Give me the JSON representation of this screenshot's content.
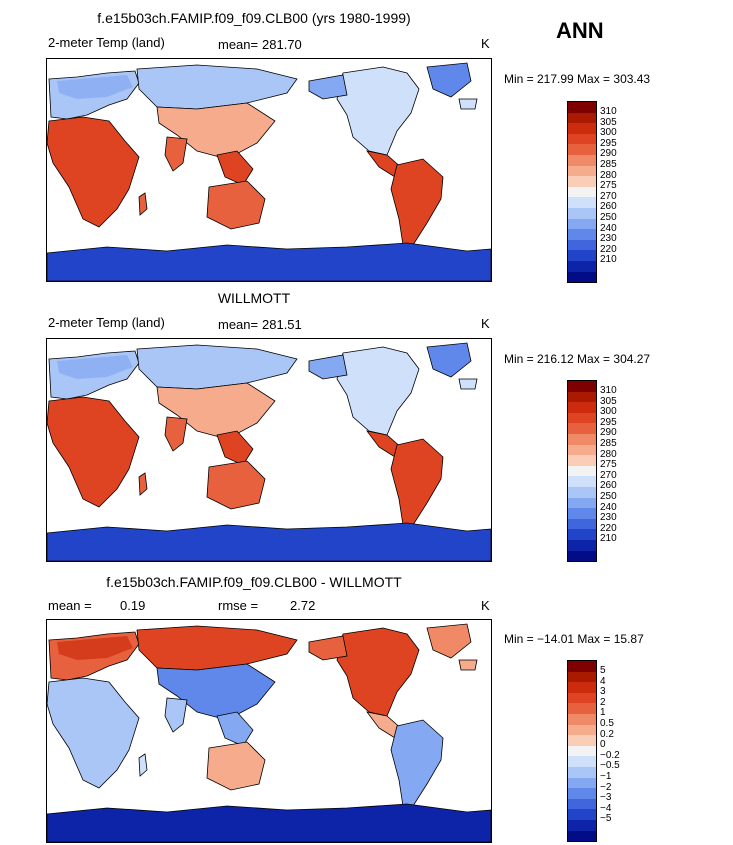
{
  "season": "ANN",
  "palette": {
    "temp": [
      "#7f0000",
      "#aa1a00",
      "#cc2c0d",
      "#de4422",
      "#e8613e",
      "#f08a66",
      "#f5ab8c",
      "#f9cdb6",
      "#f3f3f3",
      "#cfe0fa",
      "#a9c6f7",
      "#84a8f1",
      "#5f88ea",
      "#3f66dd",
      "#2244c8",
      "#0e24a8",
      "#010c86"
    ],
    "diff": [
      "#7f0000",
      "#aa1a00",
      "#cc2c0d",
      "#de4422",
      "#e8613e",
      "#f08a66",
      "#f5ab8c",
      "#f9cdb6",
      "#f3f3f3",
      "#cfe0fa",
      "#a9c6f7",
      "#84a8f1",
      "#5f88ea",
      "#3f66dd",
      "#2244c8",
      "#0e24a8",
      "#010c86"
    ]
  },
  "panels": [
    {
      "title": "f.e15b03ch.FAMIP.f09_f09.CLB00 (yrs 1980-1999)",
      "left_label": "2-meter Temp (land)",
      "stat_label": "mean=",
      "stat_value": "281.70",
      "stat2_label": "",
      "stat2_value": "",
      "units": "K",
      "minmax": "Min = 217.99 Max = 303.43",
      "kind": "temp",
      "ticks": [
        "310",
        "305",
        "300",
        "295",
        "290",
        "285",
        "280",
        "275",
        "270",
        "260",
        "250",
        "240",
        "230",
        "220",
        "210"
      ]
    },
    {
      "title": "WILLMOTT",
      "left_label": "2-meter Temp (land)",
      "stat_label": "mean=",
      "stat_value": "281.51",
      "stat2_label": "",
      "stat2_value": "",
      "units": "K",
      "minmax": "Min = 216.12 Max = 304.27",
      "kind": "temp",
      "ticks": [
        "310",
        "305",
        "300",
        "295",
        "290",
        "285",
        "280",
        "275",
        "270",
        "260",
        "250",
        "240",
        "230",
        "220",
        "210"
      ]
    },
    {
      "title": "f.e15b03ch.FAMIP.f09_f09.CLB00 - WILLMOTT",
      "left_label": "mean =",
      "stat_label": "",
      "stat_value": "0.19",
      "stat2_label": "rmse =",
      "stat2_value": "2.72",
      "units": "K",
      "minmax": "Min = −14.01 Max =  15.87",
      "kind": "diff",
      "ticks": [
        "5",
        "4",
        "3",
        "2",
        "1",
        "0.5",
        "0.2",
        "0",
        "−0.2",
        "−0.5",
        "−1",
        "−2",
        "−3",
        "−4",
        "−5"
      ]
    }
  ]
}
